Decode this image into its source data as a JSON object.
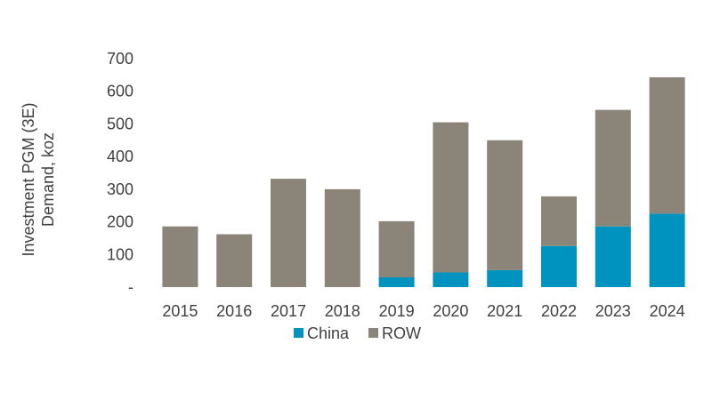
{
  "chart_data": {
    "type": "bar",
    "stacked": true,
    "ylabel_line1": "Investment PGM (3E)",
    "ylabel_line2": "Demand, koz",
    "categories": [
      "2015",
      "2016",
      "2017",
      "2018",
      "2019",
      "2020",
      "2021",
      "2022",
      "2023",
      "2024"
    ],
    "series": [
      {
        "name": "China",
        "color": "#0093C0",
        "values": [
          0,
          0,
          0,
          0,
          30,
          45,
          52,
          126,
          186,
          225
        ]
      },
      {
        "name": "ROW",
        "color": "#8B8479",
        "values": [
          186,
          162,
          332,
          300,
          172,
          460,
          398,
          152,
          357,
          418
        ]
      }
    ],
    "ylim": [
      0,
      700
    ],
    "yticks": [
      {
        "value": 0,
        "label": "-"
      },
      {
        "value": 100,
        "label": "100"
      },
      {
        "value": 200,
        "label": "200"
      },
      {
        "value": 300,
        "label": "300"
      },
      {
        "value": 400,
        "label": "400"
      },
      {
        "value": 500,
        "label": "500"
      },
      {
        "value": 600,
        "label": "600"
      },
      {
        "value": 700,
        "label": "700"
      }
    ],
    "grid": false,
    "legend_position": "bottom"
  }
}
